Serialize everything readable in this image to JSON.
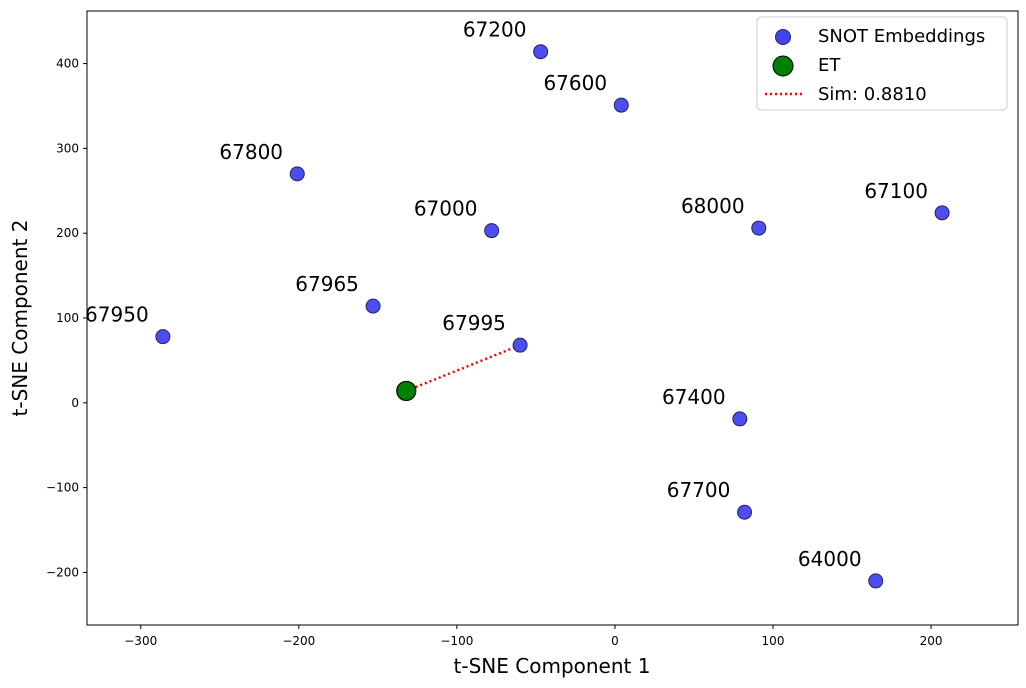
{
  "chart_data": {
    "type": "scatter",
    "title": "",
    "xlabel": "t-SNE Component 1",
    "ylabel": "t-SNE Component 2",
    "xlim": [
      -334,
      255
    ],
    "ylim": [
      -262,
      462
    ],
    "xticks": [
      -300,
      -200,
      -100,
      0,
      100,
      200
    ],
    "yticks": [
      -200,
      -100,
      0,
      100,
      200,
      300,
      400
    ],
    "grid": false,
    "legend_position": "top-right",
    "series": [
      {
        "name": "SNOT Embeddings",
        "color": "#4444ee",
        "points": [
          {
            "label": "67200",
            "x": -47,
            "y": 414
          },
          {
            "label": "67600",
            "x": 4,
            "y": 351
          },
          {
            "label": "67800",
            "x": -201,
            "y": 270
          },
          {
            "label": "67000",
            "x": -78,
            "y": 203
          },
          {
            "label": "68000",
            "x": 91,
            "y": 206
          },
          {
            "label": "67100",
            "x": 207,
            "y": 224
          },
          {
            "label": "67965",
            "x": -153,
            "y": 114
          },
          {
            "label": "67950",
            "x": -286,
            "y": 78
          },
          {
            "label": "67995",
            "x": -60,
            "y": 68
          },
          {
            "label": "67400",
            "x": 79,
            "y": -19
          },
          {
            "label": "67700",
            "x": 82,
            "y": -129
          },
          {
            "label": "64000",
            "x": 165,
            "y": -210
          }
        ]
      },
      {
        "name": "ET",
        "color": "#008000",
        "points": [
          {
            "label": "",
            "x": -132,
            "y": 14
          }
        ]
      }
    ],
    "similarity_line": {
      "name": "Sim: 0.8810",
      "color": "#ff0000",
      "from": {
        "x": -132,
        "y": 14
      },
      "to": {
        "x": -60,
        "y": 68
      }
    }
  }
}
